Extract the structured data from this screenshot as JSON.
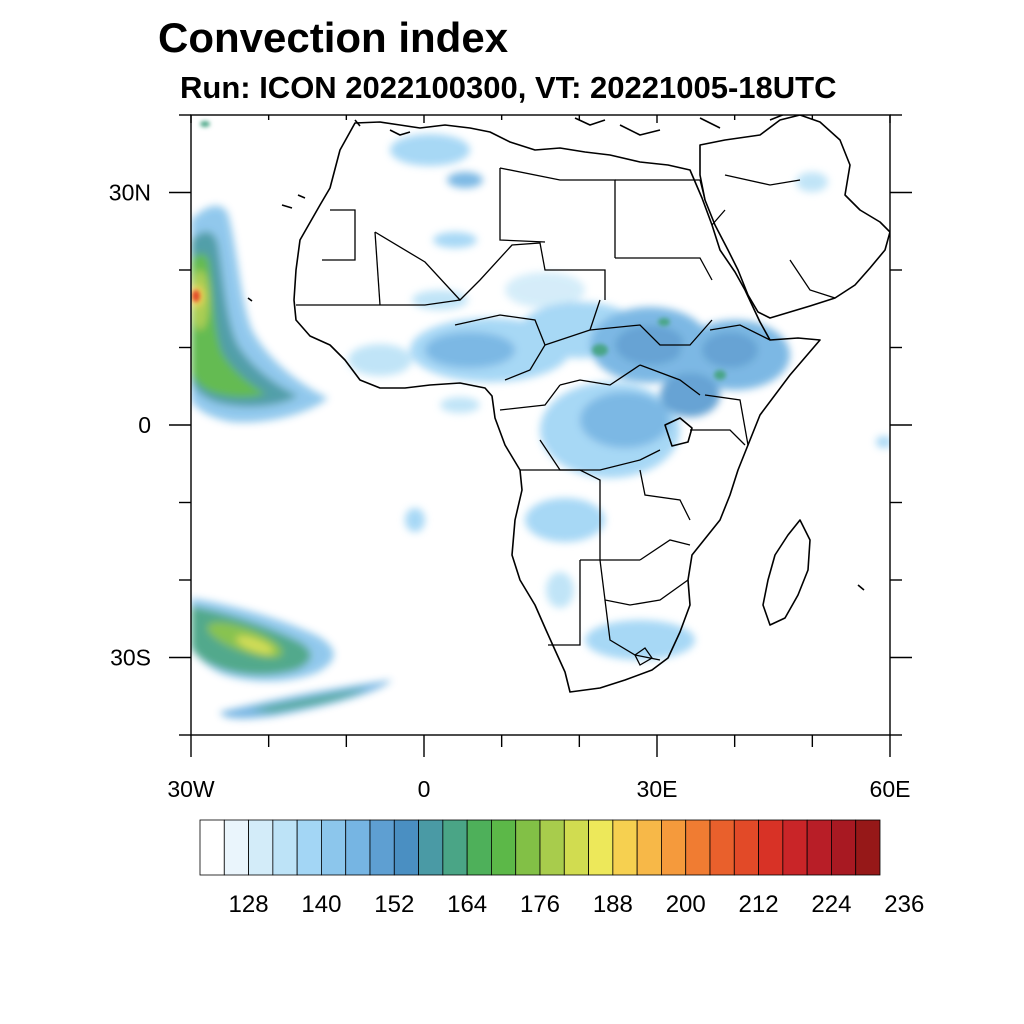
{
  "title": "Convection index",
  "subtitle": "Run: ICON 2022100300,  VT: 20221005-18UTC",
  "axes": {
    "lon_range": [
      -30,
      60
    ],
    "lat_range": [
      -40,
      40
    ],
    "x_ticks": [
      {
        "value": -30,
        "label": "30W"
      },
      {
        "value": 0,
        "label": "0"
      },
      {
        "value": 30,
        "label": "30E"
      },
      {
        "value": 60,
        "label": "60E"
      }
    ],
    "y_ticks": [
      {
        "value": 30,
        "label": "30N"
      },
      {
        "value": 0,
        "label": "0"
      },
      {
        "value": -30,
        "label": "30S"
      }
    ],
    "minor_step_deg": 10
  },
  "colorbar": {
    "colors": [
      "#ffffff",
      "#eaf5fc",
      "#d3ecf9",
      "#bde3f7",
      "#a3d6f5",
      "#8cc6ec",
      "#76b5e3",
      "#5e9fd2",
      "#4a8fc2",
      "#4a9aa5",
      "#4aa586",
      "#4eb05a",
      "#5cb848",
      "#82c046",
      "#a8cc4c",
      "#d1dc50",
      "#ede85a",
      "#f6d050",
      "#f7b848",
      "#f59a3c",
      "#f07c32",
      "#e9602c",
      "#e24a28",
      "#d83226",
      "#c92528",
      "#b81e27",
      "#a81922",
      "#961818"
    ],
    "labels": [
      "128",
      "140",
      "152",
      "164",
      "176",
      "188",
      "200",
      "212",
      "224",
      "236"
    ]
  },
  "layers": {
    "coastline": "Africa and Arabia coastlines",
    "borders": "Country borders",
    "shading": "Convection index field"
  }
}
